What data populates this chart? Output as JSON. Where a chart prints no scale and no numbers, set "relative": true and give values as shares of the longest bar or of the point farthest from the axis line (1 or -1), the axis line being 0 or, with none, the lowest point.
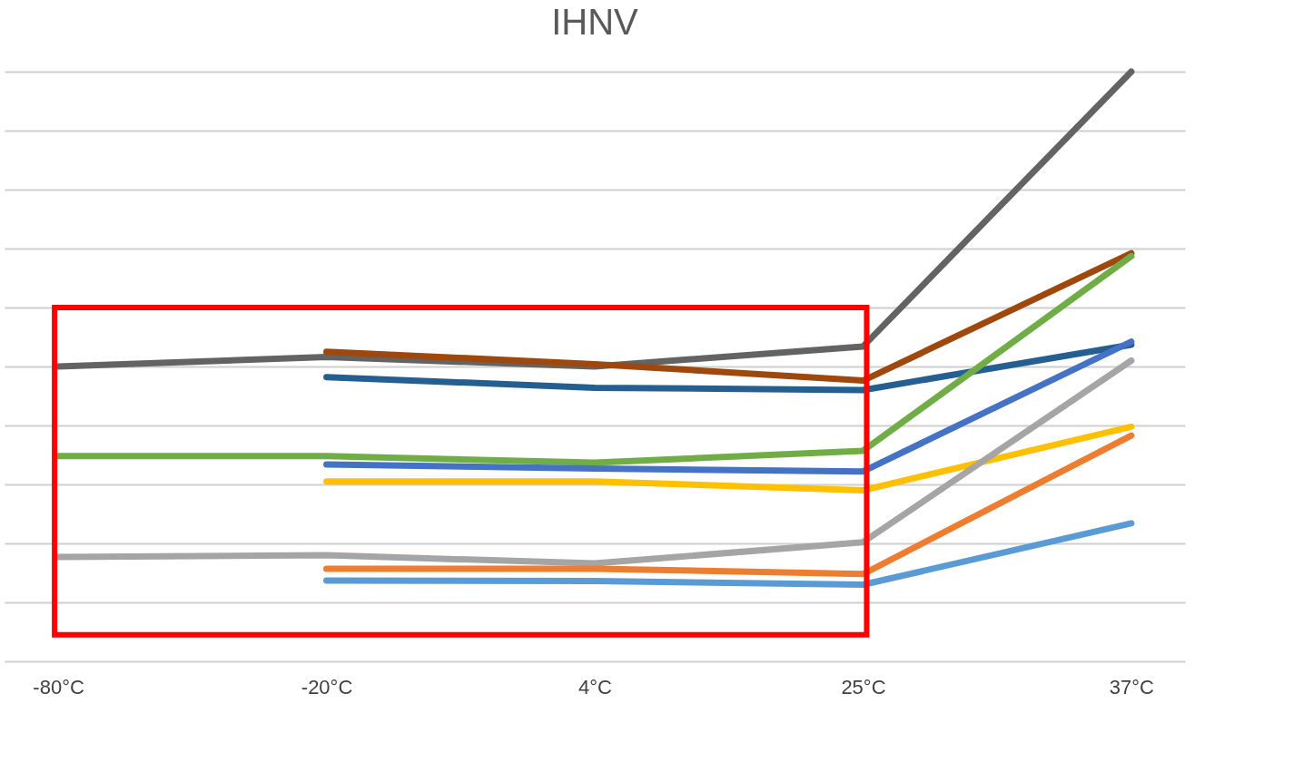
{
  "chart_data": {
    "type": "line",
    "title": "IHNV",
    "relative": true,
    "grid": "y",
    "line_style": "solid",
    "marker": "none",
    "categories": [
      "-80°C",
      "-20°C",
      "4°C",
      "25°C",
      "37°C"
    ],
    "series": [
      {
        "color": "#636363",
        "values": [
          0.5,
          0.516,
          0.5,
          0.534,
          1.0
        ]
      },
      {
        "color": "#9e480e",
        "values": [
          null,
          0.525,
          0.504,
          0.476,
          0.692
        ]
      },
      {
        "color": "#255e91",
        "values": [
          null,
          0.482,
          0.464,
          0.46,
          0.537
        ]
      },
      {
        "color": "#70ad47",
        "values": [
          0.348,
          0.348,
          0.337,
          0.357,
          0.687
        ]
      },
      {
        "color": "#4472c4",
        "values": [
          null,
          0.334,
          0.327,
          0.322,
          0.542
        ]
      },
      {
        "color": "#ffc000",
        "values": [
          null,
          0.305,
          0.305,
          0.29,
          0.398
        ]
      },
      {
        "color": "#a5a5a5",
        "values": [
          0.177,
          0.18,
          0.166,
          0.202,
          0.51
        ]
      },
      {
        "color": "#ed7d31",
        "values": [
          null,
          0.157,
          0.157,
          0.148,
          0.383
        ]
      },
      {
        "color": "#5b9bd5",
        "values": [
          null,
          0.137,
          0.136,
          0.13,
          0.234
        ]
      }
    ]
  }
}
